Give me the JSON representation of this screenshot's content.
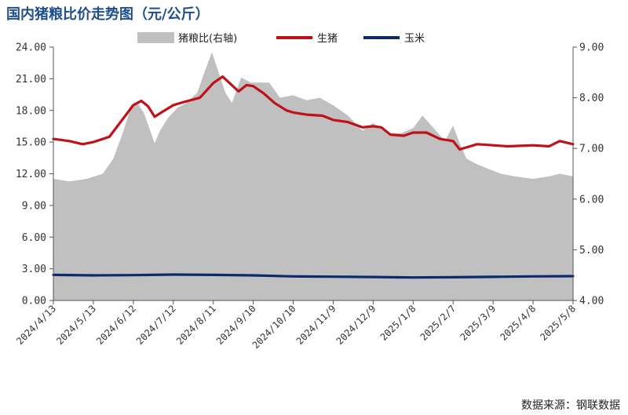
{
  "chart_data": {
    "type": "line",
    "title": "国内猪粮比价走势图（元/公斤）",
    "source": "数据来源：钢联数据",
    "x_tick_labels": [
      "2024/4/13",
      "2024/5/13",
      "2024/6/12",
      "2024/7/12",
      "2024/8/11",
      "2024/9/10",
      "2024/10/10",
      "2024/11/9",
      "2024/12/9",
      "2025/1/8",
      "2025/2/7",
      "2025/3/9",
      "2025/4/8",
      "2025/5/8"
    ],
    "x_range": [
      "2024/4/13",
      "2025/5/8"
    ],
    "y_left": {
      "range": [
        0,
        24
      ],
      "ticks": [
        "0.00",
        "3.00",
        "6.00",
        "9.00",
        "12.00",
        "15.00",
        "18.00",
        "21.00",
        "24.00"
      ]
    },
    "y_right": {
      "range": [
        4,
        9
      ],
      "ticks": [
        "4.00",
        "5.00",
        "6.00",
        "7.00",
        "8.00",
        "9.00"
      ]
    },
    "grid": false,
    "legend_position": "top",
    "series": [
      {
        "name": "猪粮比(右轴)",
        "kind": "area",
        "axis": "right",
        "color": "#c0c0c0",
        "x": [
          "2024/4/13",
          "2024/4/25",
          "2024/5/8",
          "2024/5/20",
          "2024/5/28",
          "2024/6/4",
          "2024/6/10",
          "2024/6/15",
          "2024/6/20",
          "2024/6/28",
          "2024/7/2",
          "2024/7/8",
          "2024/7/15",
          "2024/7/22",
          "2024/7/30",
          "2024/8/5",
          "2024/8/10",
          "2024/8/15",
          "2024/8/20",
          "2024/8/25",
          "2024/9/1",
          "2024/9/8",
          "2024/9/15",
          "2024/9/22",
          "2024/9/30",
          "2024/10/10",
          "2024/10/20",
          "2024/10/30",
          "2024/11/9",
          "2024/11/20",
          "2024/12/1",
          "2024/12/9",
          "2024/12/20",
          "2024/12/30",
          "2025/1/8",
          "2025/1/15",
          "2025/1/25",
          "2025/2/1",
          "2025/2/7",
          "2025/2/12",
          "2025/2/17",
          "2025/2/24",
          "2025/3/5",
          "2025/3/15",
          "2025/3/25",
          "2025/4/8",
          "2025/4/20",
          "2025/4/28",
          "2025/5/8"
        ],
        "values": [
          6.4,
          6.35,
          6.4,
          6.5,
          6.8,
          7.3,
          7.8,
          7.9,
          7.7,
          7.1,
          7.35,
          7.6,
          7.8,
          7.9,
          8.1,
          8.55,
          8.9,
          8.5,
          8.1,
          7.9,
          8.4,
          8.3,
          8.3,
          8.3,
          8.0,
          8.05,
          7.95,
          8.0,
          7.85,
          7.65,
          7.35,
          7.5,
          7.3,
          7.3,
          7.4,
          7.65,
          7.35,
          7.15,
          7.45,
          7.1,
          6.8,
          6.7,
          6.6,
          6.5,
          6.45,
          6.4,
          6.45,
          6.5,
          6.45
        ]
      },
      {
        "name": "生猪",
        "kind": "line",
        "axis": "left",
        "color": "#c0101a",
        "x": [
          "2024/4/13",
          "2024/4/25",
          "2024/5/5",
          "2024/5/13",
          "2024/5/25",
          "2024/6/3",
          "2024/6/12",
          "2024/6/18",
          "2024/6/23",
          "2024/6/28",
          "2024/7/3",
          "2024/7/12",
          "2024/7/20",
          "2024/8/1",
          "2024/8/11",
          "2024/8/18",
          "2024/8/24",
          "2024/8/30",
          "2024/9/5",
          "2024/9/10",
          "2024/9/18",
          "2024/9/26",
          "2024/10/5",
          "2024/10/10",
          "2024/10/20",
          "2024/11/1",
          "2024/11/9",
          "2024/11/20",
          "2024/12/1",
          "2024/12/9",
          "2024/12/15",
          "2024/12/22",
          "2025/1/1",
          "2025/1/8",
          "2025/1/18",
          "2025/1/28",
          "2025/2/7",
          "2025/2/12",
          "2025/2/17",
          "2025/2/25",
          "2025/3/9",
          "2025/3/20",
          "2025/4/8",
          "2025/4/20",
          "2025/4/28",
          "2025/5/8"
        ],
        "values": [
          15.3,
          15.1,
          14.8,
          15.0,
          15.5,
          17.0,
          18.5,
          18.9,
          18.4,
          17.4,
          17.8,
          18.5,
          18.8,
          19.2,
          20.6,
          21.2,
          20.5,
          19.8,
          20.4,
          20.3,
          19.6,
          18.7,
          18.0,
          17.8,
          17.6,
          17.5,
          17.1,
          16.9,
          16.4,
          16.5,
          16.4,
          15.7,
          15.6,
          15.9,
          15.9,
          15.3,
          15.1,
          14.3,
          14.5,
          14.8,
          14.7,
          14.6,
          14.7,
          14.6,
          15.1,
          14.8
        ]
      },
      {
        "name": "玉米",
        "kind": "line",
        "axis": "left",
        "color": "#0d2a6e",
        "x": [
          "2024/4/13",
          "2024/5/13",
          "2024/6/12",
          "2024/7/12",
          "2024/8/11",
          "2024/9/10",
          "2024/10/10",
          "2024/11/9",
          "2024/12/9",
          "2025/1/8",
          "2025/2/7",
          "2025/3/9",
          "2025/4/8",
          "2025/5/8"
        ],
        "values": [
          2.42,
          2.38,
          2.4,
          2.45,
          2.42,
          2.38,
          2.28,
          2.25,
          2.22,
          2.18,
          2.2,
          2.24,
          2.28,
          2.3
        ]
      }
    ]
  }
}
